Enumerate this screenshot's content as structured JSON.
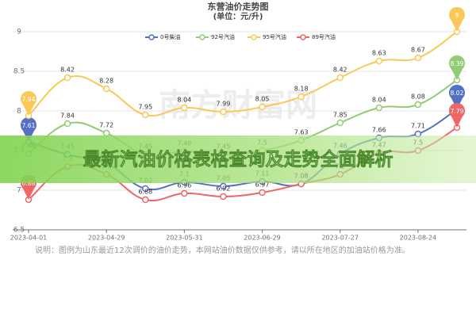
{
  "chart_data": {
    "type": "line",
    "title": "东营油价走势图",
    "subtitle": "(单位：元/升)",
    "categories": [
      "2023-04-01",
      null,
      "2023-04-29",
      null,
      "2023-05-31",
      null,
      "2023-06-29",
      null,
      "2023-07-27",
      null,
      "2023-08-24",
      null
    ],
    "series": [
      {
        "name": "0号柴油",
        "color": "#5470c6",
        "values": [
          7.61,
          7.45,
          7.34,
          7.02,
          7.1,
          7.05,
          7.11,
          7.08,
          7.46,
          7.66,
          7.71,
          8.02
        ]
      },
      {
        "name": "92号汽油",
        "color": "#91cc75",
        "values": [
          7.46,
          7.84,
          7.72,
          7.45,
          7.49,
          7.45,
          7.5,
          7.63,
          7.85,
          8.04,
          8.08,
          8.39
        ]
      },
      {
        "name": "95号汽油",
        "color": "#fac858",
        "values": [
          7.94,
          8.42,
          8.28,
          7.95,
          8.04,
          7.99,
          8.05,
          8.18,
          8.42,
          8.63,
          8.67,
          9
        ]
      },
      {
        "name": "89号汽油",
        "color": "#ee6666",
        "values": [
          6.88,
          7.3,
          7.2,
          6.88,
          6.96,
          6.92,
          6.97,
          7.08,
          7.2,
          7.47,
          7.5,
          7.79
        ]
      }
    ],
    "ylim": [
      6.5,
      9
    ],
    "yticks": [
      6.5,
      7,
      7.5,
      8,
      8.5,
      9
    ],
    "grid": true,
    "legend": "top",
    "watermark": "南方财富网",
    "banner": "最新汽油价格表格查询及走势全面解析",
    "note": "说明：图例为山东最近12次调价的油价走势，本网站油价数据仅供参考，请以所在地区的加油站价格为准。"
  }
}
